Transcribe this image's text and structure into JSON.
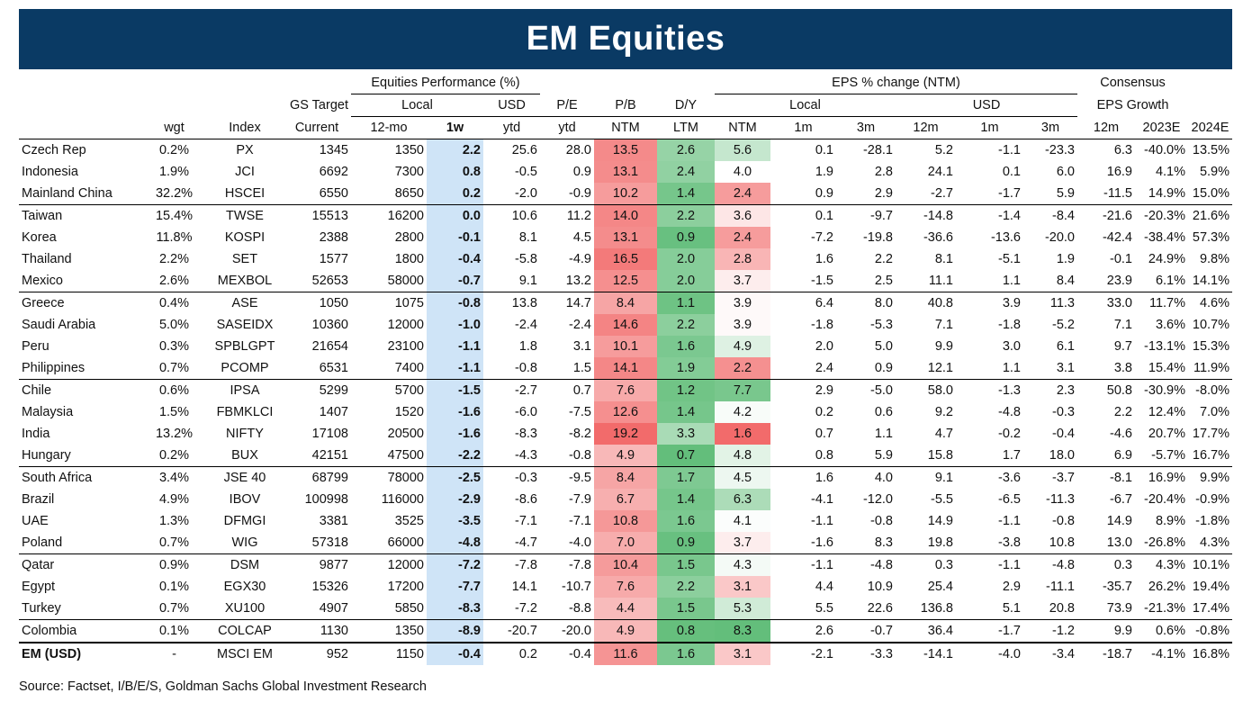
{
  "title": "EM Equities",
  "headers": {
    "row1": {
      "equities_performance": "Equities Performance (%)",
      "eps_change": "EPS % change (NTM)",
      "consensus": "Consensus"
    },
    "row2": {
      "gs_target": "GS Target",
      "local": "Local",
      "usd": "USD",
      "pe": "P/E",
      "pb": "P/B",
      "dy": "D/Y",
      "eps_local": "Local",
      "eps_usd": "USD",
      "eps_growth": "EPS Growth"
    },
    "row3": [
      "wgt",
      "Index",
      "Current",
      "12-mo",
      "1w",
      "ytd",
      "ytd",
      "NTM",
      "LTM",
      "NTM",
      "1m",
      "3m",
      "12m",
      "1m",
      "3m",
      "12m",
      "2023E",
      "2024E"
    ]
  },
  "colors": {
    "header_bg": "#0a3a64",
    "perf_1w_bg": "#cfe4f7",
    "pe_scale": [
      "#fbe6e6",
      "#f26b6b"
    ],
    "pb_scale": [
      "#ffffff",
      "#63be7b"
    ],
    "dy_low": "#f26b6b",
    "dy_high": "#63be7b"
  },
  "rows": [
    {
      "country": "Czech Rep",
      "wgt": "0.2%",
      "index": "PX",
      "current": "1345",
      "target": "1350",
      "w1": "2.2",
      "ytd_local": "25.6",
      "ytd_usd": "28.0",
      "pe": "13.5",
      "pb": "2.6",
      "dy": "5.6",
      "l1m": "0.1",
      "l3m": "-28.1",
      "l12m": "5.2",
      "u1m": "-1.1",
      "u3m": "-23.3",
      "u12m": "6.3",
      "g23": "-40.0%",
      "g24": "13.5%"
    },
    {
      "country": "Indonesia",
      "wgt": "1.9%",
      "index": "JCI",
      "current": "6692",
      "target": "7300",
      "w1": "0.8",
      "ytd_local": "-0.5",
      "ytd_usd": "0.9",
      "pe": "13.1",
      "pb": "2.4",
      "dy": "4.0",
      "l1m": "1.9",
      "l3m": "2.8",
      "l12m": "24.1",
      "u1m": "0.1",
      "u3m": "6.0",
      "u12m": "16.9",
      "g23": "4.1%",
      "g24": "5.9%"
    },
    {
      "country": "Mainland China",
      "wgt": "32.2%",
      "index": "HSCEI",
      "current": "6550",
      "target": "8650",
      "w1": "0.2",
      "ytd_local": "-2.0",
      "ytd_usd": "-0.9",
      "pe": "10.2",
      "pb": "1.4",
      "dy": "2.4",
      "l1m": "0.9",
      "l3m": "2.9",
      "l12m": "-2.7",
      "u1m": "-1.7",
      "u3m": "5.9",
      "u12m": "-11.5",
      "g23": "14.9%",
      "g24": "15.0%"
    },
    {
      "country": "Taiwan",
      "wgt": "15.4%",
      "index": "TWSE",
      "current": "15513",
      "target": "16200",
      "w1": "0.0",
      "ytd_local": "10.6",
      "ytd_usd": "11.2",
      "pe": "14.0",
      "pb": "2.2",
      "dy": "3.6",
      "l1m": "0.1",
      "l3m": "-9.7",
      "l12m": "-14.8",
      "u1m": "-1.4",
      "u3m": "-8.4",
      "u12m": "-21.6",
      "g23": "-20.3%",
      "g24": "21.6%"
    },
    {
      "country": "Korea",
      "wgt": "11.8%",
      "index": "KOSPI",
      "current": "2388",
      "target": "2800",
      "w1": "-0.1",
      "ytd_local": "8.1",
      "ytd_usd": "4.5",
      "pe": "13.1",
      "pb": "0.9",
      "dy": "2.4",
      "l1m": "-7.2",
      "l3m": "-19.8",
      "l12m": "-36.6",
      "u1m": "-13.6",
      "u3m": "-20.0",
      "u12m": "-42.4",
      "g23": "-38.4%",
      "g24": "57.3%"
    },
    {
      "country": "Thailand",
      "wgt": "2.2%",
      "index": "SET",
      "current": "1577",
      "target": "1800",
      "w1": "-0.4",
      "ytd_local": "-5.8",
      "ytd_usd": "-4.9",
      "pe": "16.5",
      "pb": "2.0",
      "dy": "2.8",
      "l1m": "1.6",
      "l3m": "2.2",
      "l12m": "8.1",
      "u1m": "-5.1",
      "u3m": "1.9",
      "u12m": "-0.1",
      "g23": "24.9%",
      "g24": "9.8%"
    },
    {
      "country": "Mexico",
      "wgt": "2.6%",
      "index": "MEXBOL",
      "current": "52653",
      "target": "58000",
      "w1": "-0.7",
      "ytd_local": "9.1",
      "ytd_usd": "13.2",
      "pe": "12.5",
      "pb": "2.0",
      "dy": "3.7",
      "l1m": "-1.5",
      "l3m": "2.5",
      "l12m": "11.1",
      "u1m": "1.1",
      "u3m": "8.4",
      "u12m": "23.9",
      "g23": "6.1%",
      "g24": "14.1%"
    },
    {
      "country": "Greece",
      "wgt": "0.4%",
      "index": "ASE",
      "current": "1050",
      "target": "1075",
      "w1": "-0.8",
      "ytd_local": "13.8",
      "ytd_usd": "14.7",
      "pe": "8.4",
      "pb": "1.1",
      "dy": "3.9",
      "l1m": "6.4",
      "l3m": "8.0",
      "l12m": "40.8",
      "u1m": "3.9",
      "u3m": "11.3",
      "u12m": "33.0",
      "g23": "11.7%",
      "g24": "4.6%"
    },
    {
      "country": "Saudi Arabia",
      "wgt": "5.0%",
      "index": "SASEIDX",
      "current": "10360",
      "target": "12000",
      "w1": "-1.0",
      "ytd_local": "-2.4",
      "ytd_usd": "-2.4",
      "pe": "14.6",
      "pb": "2.2",
      "dy": "3.9",
      "l1m": "-1.8",
      "l3m": "-5.3",
      "l12m": "7.1",
      "u1m": "-1.8",
      "u3m": "-5.2",
      "u12m": "7.1",
      "g23": "3.6%",
      "g24": "10.7%"
    },
    {
      "country": "Peru",
      "wgt": "0.3%",
      "index": "SPBLGPT",
      "current": "21654",
      "target": "23100",
      "w1": "-1.1",
      "ytd_local": "1.8",
      "ytd_usd": "3.1",
      "pe": "10.1",
      "pb": "1.6",
      "dy": "4.9",
      "l1m": "2.0",
      "l3m": "5.0",
      "l12m": "9.9",
      "u1m": "3.0",
      "u3m": "6.1",
      "u12m": "9.7",
      "g23": "-13.1%",
      "g24": "15.3%"
    },
    {
      "country": "Philippines",
      "wgt": "0.7%",
      "index": "PCOMP",
      "current": "6531",
      "target": "7400",
      "w1": "-1.1",
      "ytd_local": "-0.8",
      "ytd_usd": "1.5",
      "pe": "14.1",
      "pb": "1.9",
      "dy": "2.2",
      "l1m": "2.4",
      "l3m": "0.9",
      "l12m": "12.1",
      "u1m": "1.1",
      "u3m": "3.1",
      "u12m": "3.8",
      "g23": "15.4%",
      "g24": "11.9%"
    },
    {
      "country": "Chile",
      "wgt": "0.6%",
      "index": "IPSA",
      "current": "5299",
      "target": "5700",
      "w1": "-1.5",
      "ytd_local": "-2.7",
      "ytd_usd": "0.7",
      "pe": "7.6",
      "pb": "1.2",
      "dy": "7.7",
      "l1m": "2.9",
      "l3m": "-5.0",
      "l12m": "58.0",
      "u1m": "-1.3",
      "u3m": "2.3",
      "u12m": "50.8",
      "g23": "-30.9%",
      "g24": "-8.0%"
    },
    {
      "country": "Malaysia",
      "wgt": "1.5%",
      "index": "FBMKLCI",
      "current": "1407",
      "target": "1520",
      "w1": "-1.6",
      "ytd_local": "-6.0",
      "ytd_usd": "-7.5",
      "pe": "12.6",
      "pb": "1.4",
      "dy": "4.2",
      "l1m": "0.2",
      "l3m": "0.6",
      "l12m": "9.2",
      "u1m": "-4.8",
      "u3m": "-0.3",
      "u12m": "2.2",
      "g23": "12.4%",
      "g24": "7.0%"
    },
    {
      "country": "India",
      "wgt": "13.2%",
      "index": "NIFTY",
      "current": "17108",
      "target": "20500",
      "w1": "-1.6",
      "ytd_local": "-8.3",
      "ytd_usd": "-8.2",
      "pe": "19.2",
      "pb": "3.3",
      "dy": "1.6",
      "l1m": "0.7",
      "l3m": "1.1",
      "l12m": "4.7",
      "u1m": "-0.2",
      "u3m": "-0.4",
      "u12m": "-4.6",
      "g23": "20.7%",
      "g24": "17.7%"
    },
    {
      "country": "Hungary",
      "wgt": "0.2%",
      "index": "BUX",
      "current": "42151",
      "target": "47500",
      "w1": "-2.2",
      "ytd_local": "-4.3",
      "ytd_usd": "-0.8",
      "pe": "4.9",
      "pb": "0.7",
      "dy": "4.8",
      "l1m": "0.8",
      "l3m": "5.9",
      "l12m": "15.8",
      "u1m": "1.7",
      "u3m": "18.0",
      "u12m": "6.9",
      "g23": "-5.7%",
      "g24": "16.7%"
    },
    {
      "country": "South Africa",
      "wgt": "3.4%",
      "index": "JSE 40",
      "current": "68799",
      "target": "78000",
      "w1": "-2.5",
      "ytd_local": "-0.3",
      "ytd_usd": "-9.5",
      "pe": "8.4",
      "pb": "1.7",
      "dy": "4.5",
      "l1m": "1.6",
      "l3m": "4.0",
      "l12m": "9.1",
      "u1m": "-3.6",
      "u3m": "-3.7",
      "u12m": "-8.1",
      "g23": "16.9%",
      "g24": "9.9%"
    },
    {
      "country": "Brazil",
      "wgt": "4.9%",
      "index": "IBOV",
      "current": "100998",
      "target": "116000",
      "w1": "-2.9",
      "ytd_local": "-8.6",
      "ytd_usd": "-7.9",
      "pe": "6.7",
      "pb": "1.4",
      "dy": "6.3",
      "l1m": "-4.1",
      "l3m": "-12.0",
      "l12m": "-5.5",
      "u1m": "-6.5",
      "u3m": "-11.3",
      "u12m": "-6.7",
      "g23": "-20.4%",
      "g24": "-0.9%"
    },
    {
      "country": "UAE",
      "wgt": "1.3%",
      "index": "DFMGI",
      "current": "3381",
      "target": "3525",
      "w1": "-3.5",
      "ytd_local": "-7.1",
      "ytd_usd": "-7.1",
      "pe": "10.8",
      "pb": "1.6",
      "dy": "4.1",
      "l1m": "-1.1",
      "l3m": "-0.8",
      "l12m": "14.9",
      "u1m": "-1.1",
      "u3m": "-0.8",
      "u12m": "14.9",
      "g23": "8.9%",
      "g24": "-1.8%"
    },
    {
      "country": "Poland",
      "wgt": "0.7%",
      "index": "WIG",
      "current": "57318",
      "target": "66000",
      "w1": "-4.8",
      "ytd_local": "-4.7",
      "ytd_usd": "-4.0",
      "pe": "7.0",
      "pb": "0.9",
      "dy": "3.7",
      "l1m": "-1.6",
      "l3m": "8.3",
      "l12m": "19.8",
      "u1m": "-3.8",
      "u3m": "10.8",
      "u12m": "13.0",
      "g23": "-26.8%",
      "g24": "4.3%"
    },
    {
      "country": "Qatar",
      "wgt": "0.9%",
      "index": "DSM",
      "current": "9877",
      "target": "12000",
      "w1": "-7.2",
      "ytd_local": "-7.8",
      "ytd_usd": "-7.8",
      "pe": "10.4",
      "pb": "1.5",
      "dy": "4.3",
      "l1m": "-1.1",
      "l3m": "-4.8",
      "l12m": "0.3",
      "u1m": "-1.1",
      "u3m": "-4.8",
      "u12m": "0.3",
      "g23": "4.3%",
      "g24": "10.1%"
    },
    {
      "country": "Egypt",
      "wgt": "0.1%",
      "index": "EGX30",
      "current": "15326",
      "target": "17200",
      "w1": "-7.7",
      "ytd_local": "14.1",
      "ytd_usd": "-10.7",
      "pe": "7.6",
      "pb": "2.2",
      "dy": "3.1",
      "l1m": "4.4",
      "l3m": "10.9",
      "l12m": "25.4",
      "u1m": "2.9",
      "u3m": "-11.1",
      "u12m": "-35.7",
      "g23": "26.2%",
      "g24": "19.4%"
    },
    {
      "country": "Turkey",
      "wgt": "0.7%",
      "index": "XU100",
      "current": "4907",
      "target": "5850",
      "w1": "-8.3",
      "ytd_local": "-7.2",
      "ytd_usd": "-8.8",
      "pe": "4.4",
      "pb": "1.5",
      "dy": "5.3",
      "l1m": "5.5",
      "l3m": "22.6",
      "l12m": "136.8",
      "u1m": "5.1",
      "u3m": "20.8",
      "u12m": "73.9",
      "g23": "-21.3%",
      "g24": "17.4%"
    },
    {
      "country": "Colombia",
      "wgt": "0.1%",
      "index": "COLCAP",
      "current": "1130",
      "target": "1350",
      "w1": "-8.9",
      "ytd_local": "-20.7",
      "ytd_usd": "-20.0",
      "pe": "4.9",
      "pb": "0.8",
      "dy": "8.3",
      "l1m": "2.6",
      "l3m": "-0.7",
      "l12m": "36.4",
      "u1m": "-1.7",
      "u3m": "-1.2",
      "u12m": "9.9",
      "g23": "0.6%",
      "g24": "-0.8%"
    }
  ],
  "em_row": {
    "country": "EM (USD)",
    "wgt": "-",
    "index": "MSCI EM",
    "current": "952",
    "target": "1150",
    "w1": "-0.4",
    "ytd_local": "0.2",
    "ytd_usd": "-0.4",
    "pe": "11.6",
    "pb": "1.6",
    "dy": "3.1",
    "l1m": "-2.1",
    "l3m": "-3.3",
    "l12m": "-14.1",
    "u1m": "-4.0",
    "u3m": "-3.4",
    "u12m": "-18.7",
    "g23": "-4.1%",
    "g24": "16.8%"
  },
  "group_starts": [
    3,
    7,
    11,
    15,
    19,
    22
  ],
  "source": "Source: Factset, I/B/E/S, Goldman Sachs Global Investment Research"
}
